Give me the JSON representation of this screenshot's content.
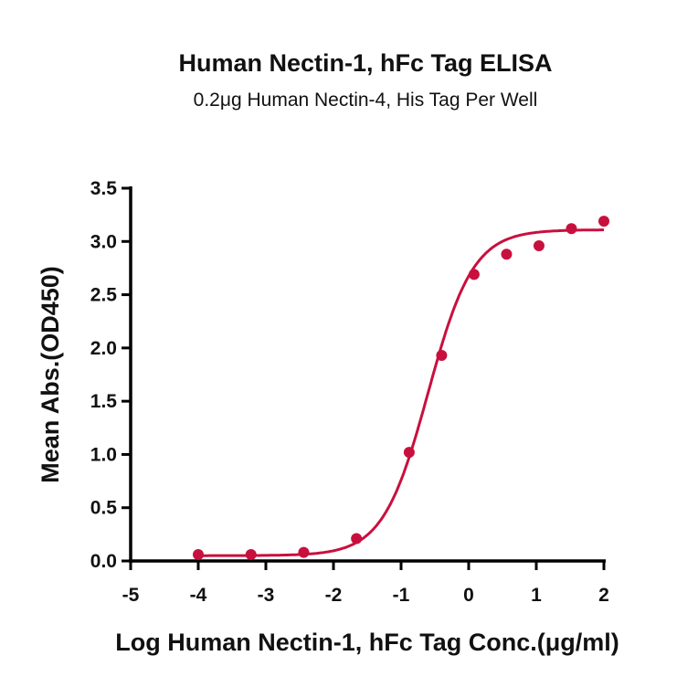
{
  "chart_data": {
    "type": "scatter",
    "title": "Human Nectin-1, hFc Tag ELISA",
    "subtitle": "0.2μg Human Nectin-4, His Tag Per Well",
    "xlabel": "Log Human Nectin-1, hFc Tag Conc.(μg/ml)",
    "ylabel": "Mean Abs.(OD450)",
    "xlim": [
      -5,
      2
    ],
    "ylim": [
      0,
      3.5
    ],
    "xticks": [
      "-5",
      "-4",
      "-3",
      "-2",
      "-1",
      "0",
      "1",
      "2"
    ],
    "yticks": [
      "0.0",
      "0.5",
      "1.0",
      "1.5",
      "2.0",
      "2.5",
      "3.0",
      "3.5"
    ],
    "grid": false,
    "series": [
      {
        "name": "Human Nectin-1, hFc Tag",
        "color": "#c8103e",
        "x": [
          -4.0,
          -3.22,
          -2.44,
          -1.66,
          -0.88,
          -0.4,
          0.08,
          0.56,
          1.04,
          1.52,
          2.0
        ],
        "y": [
          0.06,
          0.06,
          0.08,
          0.21,
          1.02,
          1.93,
          2.69,
          2.88,
          2.96,
          3.12,
          3.19
        ],
        "fit": {
          "model": "4PL",
          "bottom": 0.05,
          "top": 3.11,
          "logEC50": -0.6,
          "hill": 1.3
        }
      }
    ]
  }
}
